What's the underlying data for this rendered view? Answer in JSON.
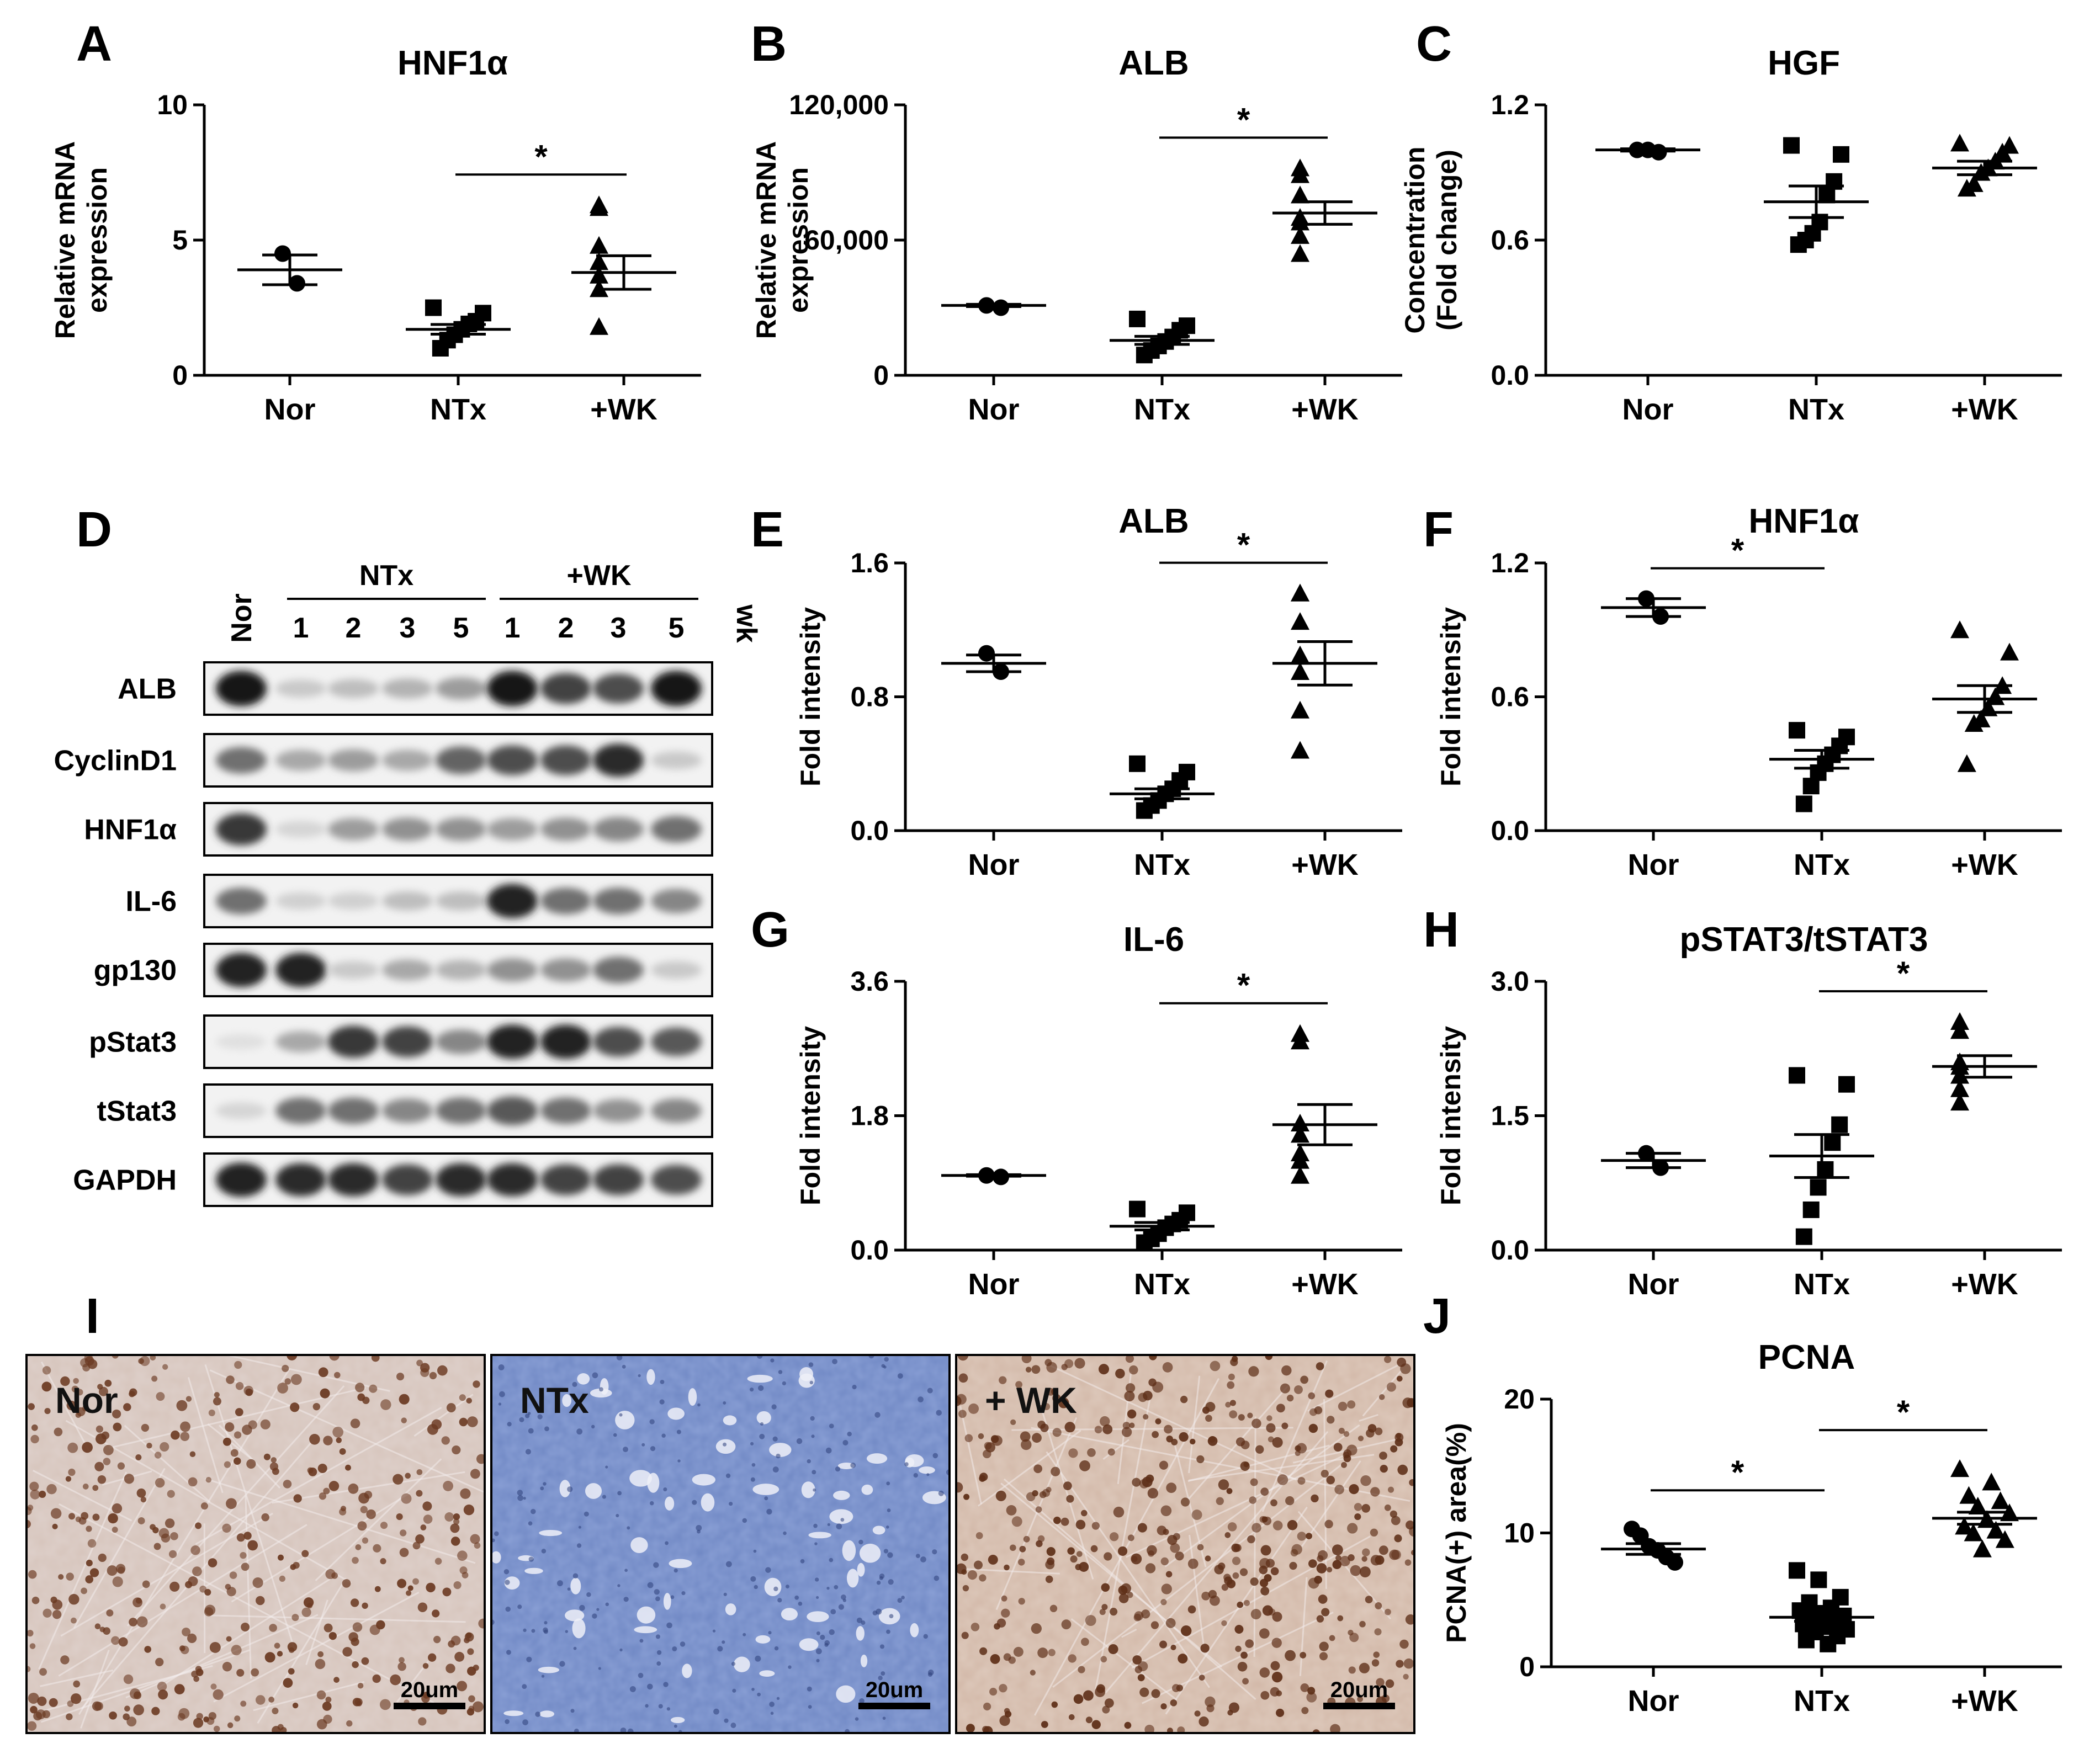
{
  "figure": {
    "panels": {
      "A": "A",
      "B": "B",
      "C": "C",
      "D": "D",
      "E": "E",
      "F": "F",
      "G": "G",
      "H": "H",
      "I": "I",
      "J": "J"
    },
    "colors": {
      "ink": "#000000",
      "nor_tissue": "#c9b2a8",
      "ntx_tissue": "#5f77b8",
      "wk_tissue": "#c8ab9a",
      "nuclei": "#6b3a22"
    }
  },
  "chart_data": [
    {
      "id": "A",
      "type": "scatter",
      "title": "HNF1α",
      "ylabel": "Relative mRNA\nexpression",
      "categories": [
        "Nor",
        "NTx",
        "+WK"
      ],
      "ylim": [
        0,
        10
      ],
      "yticks": [
        "0",
        "5",
        "10"
      ],
      "ytick_values": [
        0,
        5,
        10
      ],
      "markers": [
        "circle",
        "square",
        "triangle"
      ],
      "values": [
        [
          4.5,
          3.4
        ],
        [
          2.5,
          2.3,
          2.0,
          1.9,
          1.7,
          1.5,
          1.3,
          1.0
        ],
        [
          6.3,
          6.2,
          4.8,
          4.2,
          3.7,
          3.2,
          1.8
        ]
      ],
      "mean": [
        3.9,
        1.7,
        3.8
      ],
      "sem": [
        0.55,
        0.18,
        0.62
      ],
      "significance": [
        {
          "from": 1,
          "to": 2,
          "label": "*"
        }
      ]
    },
    {
      "id": "B",
      "type": "scatter",
      "title": "ALB",
      "ylabel": "Relative mRNA\nexpression",
      "categories": [
        "Nor",
        "NTx",
        "+WK"
      ],
      "ylim": [
        0,
        120000
      ],
      "yticks": [
        "0",
        "60,000",
        "120,000"
      ],
      "ytick_values": [
        0,
        60000,
        120000
      ],
      "markers": [
        "circle",
        "square",
        "triangle"
      ],
      "values": [
        [
          31000,
          30000
        ],
        [
          25000,
          22000,
          20000,
          17000,
          15000,
          13000,
          11000,
          9000
        ],
        [
          92000,
          89000,
          80000,
          70000,
          68000,
          62000,
          54000
        ]
      ],
      "mean": [
        31000,
        15500,
        72000
      ],
      "sem": [
        500,
        1800,
        5000
      ],
      "significance": [
        {
          "from": 1,
          "to": 2,
          "label": "*"
        }
      ]
    },
    {
      "id": "C",
      "type": "scatter",
      "title": "HGF",
      "ylabel": "Concentration\n(Fold change)",
      "categories": [
        "Nor",
        "NTx",
        "+WK"
      ],
      "ylim": [
        0,
        1.2
      ],
      "yticks": [
        "0.0",
        "0.6",
        "1.2"
      ],
      "ytick_values": [
        0,
        0.6,
        1.2
      ],
      "markers": [
        "circle",
        "square",
        "triangle"
      ],
      "values": [
        [
          1.0,
          1.0,
          0.99
        ],
        [
          1.02,
          0.98,
          0.86,
          0.8,
          0.68,
          0.63,
          0.6,
          0.58
        ],
        [
          1.03,
          1.02,
          0.99,
          0.95,
          0.92,
          0.9,
          0.85,
          0.83
        ]
      ],
      "mean": [
        1.0,
        0.77,
        0.92
      ],
      "sem": [
        0.005,
        0.07,
        0.03
      ],
      "significance": []
    },
    {
      "id": "E",
      "type": "scatter",
      "title": "ALB",
      "ylabel": "Fold intensity",
      "categories": [
        "Nor",
        "NTx",
        "+WK"
      ],
      "ylim": [
        0,
        1.6
      ],
      "yticks": [
        "0.0",
        "0.8",
        "1.6"
      ],
      "ytick_values": [
        0,
        0.8,
        1.6
      ],
      "markers": [
        "circle",
        "square",
        "triangle"
      ],
      "values": [
        [
          1.06,
          0.95
        ],
        [
          0.4,
          0.35,
          0.3,
          0.25,
          0.22,
          0.18,
          0.15,
          0.12
        ],
        [
          1.42,
          1.42,
          1.25,
          1.05,
          0.95,
          0.72,
          0.48
        ]
      ],
      "mean": [
        1.0,
        0.22,
        1.0
      ],
      "sem": [
        0.05,
        0.03,
        0.13
      ],
      "significance": [
        {
          "from": 1,
          "to": 2,
          "label": "*"
        }
      ]
    },
    {
      "id": "F",
      "type": "scatter",
      "title": "HNF1α",
      "ylabel": "Fold intensity",
      "categories": [
        "Nor",
        "NTx",
        "+WK"
      ],
      "ylim": [
        0,
        1.2
      ],
      "yticks": [
        "0.0",
        "0.6",
        "1.2"
      ],
      "ytick_values": [
        0,
        0.6,
        1.2
      ],
      "markers": [
        "circle",
        "square",
        "triangle"
      ],
      "values": [
        [
          1.04,
          0.96
        ],
        [
          0.45,
          0.42,
          0.38,
          0.34,
          0.3,
          0.26,
          0.2,
          0.12
        ],
        [
          0.9,
          0.8,
          0.65,
          0.6,
          0.55,
          0.5,
          0.48,
          0.3
        ]
      ],
      "mean": [
        1.0,
        0.32,
        0.59
      ],
      "sem": [
        0.04,
        0.04,
        0.06
      ],
      "significance": [
        {
          "from": 0,
          "to": 1,
          "label": "*"
        }
      ]
    },
    {
      "id": "G",
      "type": "scatter",
      "title": "IL-6",
      "ylabel": "Fold intensity",
      "categories": [
        "Nor",
        "NTx",
        "+WK"
      ],
      "ylim": [
        0,
        3.6
      ],
      "yticks": [
        "0.0",
        "1.8",
        "3.6"
      ],
      "ytick_values": [
        0,
        1.8,
        3.6
      ],
      "markers": [
        "circle",
        "square",
        "triangle"
      ],
      "values": [
        [
          1.0,
          0.98
        ],
        [
          0.55,
          0.5,
          0.4,
          0.35,
          0.3,
          0.22,
          0.15,
          0.1
        ],
        [
          2.9,
          2.8,
          1.7,
          1.55,
          1.3,
          1.2,
          1.0
        ]
      ],
      "mean": [
        1.0,
        0.32,
        1.68
      ],
      "sem": [
        0.01,
        0.05,
        0.27
      ],
      "significance": [
        {
          "from": 1,
          "to": 2,
          "label": "*"
        }
      ]
    },
    {
      "id": "H",
      "type": "scatter",
      "title": "pSTAT3/tSTAT3",
      "ylabel": "Fold intensity",
      "categories": [
        "Nor",
        "NTx",
        "+WK"
      ],
      "ylim": [
        0,
        3.0
      ],
      "yticks": [
        "0.0",
        "1.5",
        "3.0"
      ],
      "ytick_values": [
        0,
        1.5,
        3.0
      ],
      "markers": [
        "circle",
        "square",
        "triangle"
      ],
      "values": [
        [
          1.08,
          0.92
        ],
        [
          1.95,
          1.85,
          1.4,
          1.2,
          0.9,
          0.7,
          0.45,
          0.15
        ],
        [
          2.55,
          2.45,
          2.1,
          2.05,
          1.95,
          1.8,
          1.65
        ]
      ],
      "mean": [
        1.0,
        1.05,
        2.05
      ],
      "sem": [
        0.08,
        0.24,
        0.12
      ],
      "significance": [
        {
          "from": 1,
          "to": 2,
          "label": "*"
        }
      ]
    },
    {
      "id": "J",
      "type": "scatter",
      "title": "PCNA",
      "ylabel": "PCNA(+) area(%)",
      "categories": [
        "Nor",
        "NTx",
        "+WK"
      ],
      "ylim": [
        0,
        20
      ],
      "yticks": [
        "0",
        "10",
        "20"
      ],
      "ytick_values": [
        0,
        10,
        20
      ],
      "markers": [
        "circle",
        "square",
        "triangle"
      ],
      "values": [
        [
          10.3,
          9.8,
          9.0,
          8.7,
          8.2,
          7.8
        ],
        [
          7.2,
          6.5,
          5.2,
          4.8,
          4.4,
          4.2,
          4.0,
          3.8,
          3.6,
          3.4,
          3.2,
          3.0,
          2.8,
          2.6,
          2.3,
          2.0,
          1.7
        ],
        [
          14.8,
          13.8,
          12.8,
          12.4,
          12.0,
          11.5,
          11.0,
          10.5,
          10.2,
          10.0,
          9.5,
          8.8
        ]
      ],
      "mean": [
        8.8,
        3.7,
        11.1
      ],
      "sem": [
        0.4,
        0.3,
        0.45
      ],
      "significance": [
        {
          "from": 0,
          "to": 1,
          "label": "*"
        },
        {
          "from": 1,
          "to": 2,
          "label": "*"
        }
      ]
    }
  ],
  "western_blot": {
    "lane_headers": [
      "Nor",
      "1",
      "2",
      "3",
      "5",
      "1",
      "2",
      "3",
      "5"
    ],
    "groups": [
      {
        "label": "NTx"
      },
      {
        "label": "+WK"
      }
    ],
    "unit": "wk",
    "rows": [
      {
        "label": "ALB",
        "intensity": [
          0.95,
          0.15,
          0.2,
          0.25,
          0.35,
          0.95,
          0.75,
          0.7,
          0.95
        ]
      },
      {
        "label": "CyclinD1",
        "intensity": [
          0.55,
          0.3,
          0.35,
          0.3,
          0.6,
          0.7,
          0.7,
          0.85,
          0.15
        ]
      },
      {
        "label": "HNF1α",
        "intensity": [
          0.8,
          0.1,
          0.35,
          0.4,
          0.4,
          0.35,
          0.4,
          0.45,
          0.55
        ]
      },
      {
        "label": "IL-6",
        "intensity": [
          0.55,
          0.12,
          0.12,
          0.2,
          0.2,
          0.9,
          0.55,
          0.55,
          0.45
        ]
      },
      {
        "label": "gp130",
        "intensity": [
          0.9,
          0.9,
          0.15,
          0.3,
          0.25,
          0.4,
          0.4,
          0.55,
          0.15
        ]
      },
      {
        "label": "pStat3",
        "intensity": [
          0.05,
          0.3,
          0.8,
          0.75,
          0.45,
          0.9,
          0.9,
          0.7,
          0.65
        ]
      },
      {
        "label": "tStat3",
        "intensity": [
          0.1,
          0.55,
          0.55,
          0.45,
          0.55,
          0.65,
          0.55,
          0.4,
          0.45
        ]
      },
      {
        "label": "GAPDH",
        "intensity": [
          0.9,
          0.85,
          0.85,
          0.75,
          0.85,
          0.85,
          0.75,
          0.75,
          0.7
        ]
      }
    ]
  },
  "micrographs": [
    {
      "label": "Nor",
      "scale_bar": "20um",
      "tone": "nor"
    },
    {
      "label": "NTx",
      "scale_bar": "20um",
      "tone": "ntx"
    },
    {
      "label": "+ WK",
      "scale_bar": "20um",
      "tone": "wk"
    }
  ]
}
